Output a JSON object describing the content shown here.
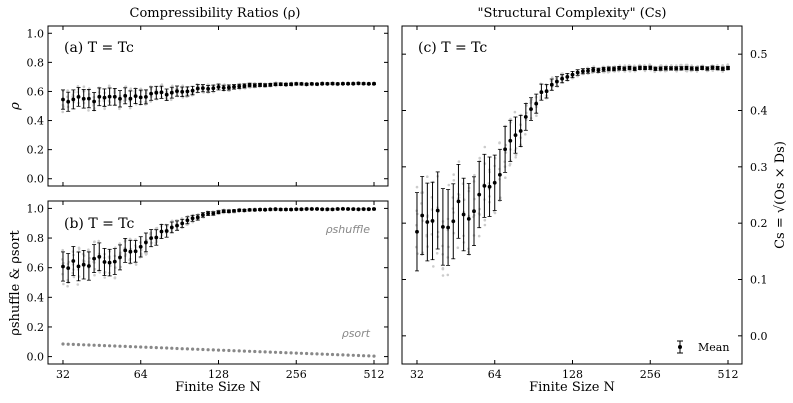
{
  "chart_data": [
    {
      "panel": "a",
      "type": "scatter",
      "title": "Compressibility Ratios (ρ)",
      "annotation": "(a) T = Tc",
      "ylabel": "ρ",
      "xscale": "log2",
      "xlim": [
        28,
        580
      ],
      "ylim": [
        -0.05,
        1.05
      ],
      "xticks": [
        32,
        64,
        128,
        256,
        512
      ],
      "yticks": [
        "0.0",
        "0.2",
        "0.4",
        "0.6",
        "0.8",
        "1.0"
      ],
      "series": [
        {
          "name": "mean",
          "x_range": [
            32,
            512
          ],
          "count": 61,
          "y_start": 0.53,
          "y_end": 0.655,
          "err_start": 0.07,
          "err_end": 0.005
        }
      ]
    },
    {
      "panel": "b",
      "type": "scatter",
      "annotation": "(b) T = Tc",
      "ylabel": "ρshuffle & ρsort",
      "xlabel": "Finite Size N",
      "xscale": "log2",
      "xlim": [
        28,
        580
      ],
      "ylim": [
        -0.05,
        1.05
      ],
      "xticks": [
        32,
        64,
        128,
        256,
        512
      ],
      "xtick_labels": [
        "32",
        "64",
        "128",
        "256",
        "512"
      ],
      "yticks": [
        "0.0",
        "0.2",
        "0.4",
        "0.6",
        "0.8",
        "1.0"
      ],
      "series_labels": {
        "shuffle": "ρshuffle",
        "sort": "ρsort"
      },
      "series": [
        {
          "name": "ρshuffle",
          "x_range": [
            32,
            512
          ],
          "count": 61,
          "y_start": 0.62,
          "y_end": 0.995,
          "err_start": 0.1,
          "err_end": 0.005
        },
        {
          "name": "ρsort",
          "x_range": [
            32,
            512
          ],
          "count": 61,
          "y_start": 0.085,
          "y_end": 0.003,
          "err_start": 0.0,
          "err_end": 0.0
        }
      ]
    },
    {
      "panel": "c",
      "type": "scatter",
      "title": "\"Structural Complexity\" (Cs)",
      "annotation": "(c) T = Tc",
      "ylabel": "Cs = √(Os × Ds)",
      "xlabel": "Finite Size N",
      "xscale": "log2",
      "xlim": [
        28,
        580
      ],
      "ylim": [
        -0.05,
        0.55
      ],
      "xticks": [
        32,
        64,
        128,
        256,
        512
      ],
      "xtick_labels": [
        "32",
        "64",
        "128",
        "256",
        "512"
      ],
      "yticks": [
        "0.0",
        "0.1",
        "0.2",
        "0.3",
        "0.4",
        "0.5"
      ],
      "legend": {
        "label": "Mean",
        "position": "bottom-right"
      },
      "series": [
        {
          "name": "Mean",
          "x_range": [
            32,
            512
          ],
          "count": 61,
          "y_start": 0.2,
          "y_end": 0.475,
          "err_start": 0.07,
          "err_end": 0.003
        }
      ]
    }
  ]
}
